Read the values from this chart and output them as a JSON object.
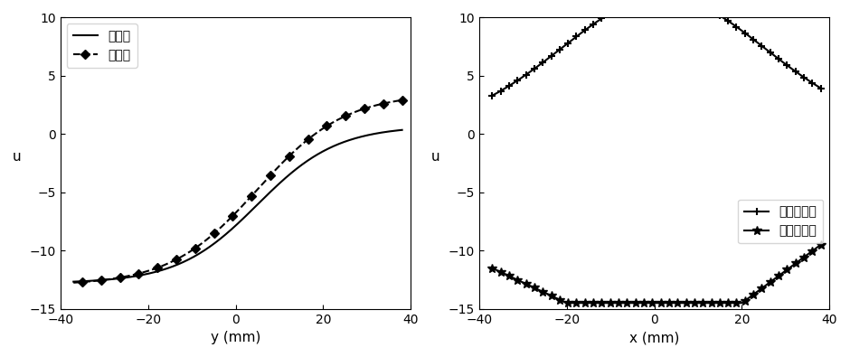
{
  "left_plot": {
    "xlabel": "y (mm)",
    "ylabel": "u",
    "xlim": [
      -40,
      40
    ],
    "ylim": [
      -15,
      10
    ],
    "yticks": [
      -15,
      -10,
      -5,
      0,
      5,
      10
    ],
    "xticks": [
      -40,
      -20,
      0,
      20,
      40
    ],
    "legend1": "左边界",
    "legend2": "右边界"
  },
  "right_plot": {
    "xlabel": "x (mm)",
    "ylabel": "u",
    "xlim": [
      -40,
      40
    ],
    "ylim": [
      -15,
      10
    ],
    "yticks": [
      -15,
      -10,
      -5,
      0,
      5,
      10
    ],
    "xticks": [
      -40,
      -20,
      0,
      20,
      40
    ],
    "legend1": "近用区边界",
    "legend2": "远用区边界"
  },
  "background_color": "#ffffff",
  "line_color": "#000000"
}
